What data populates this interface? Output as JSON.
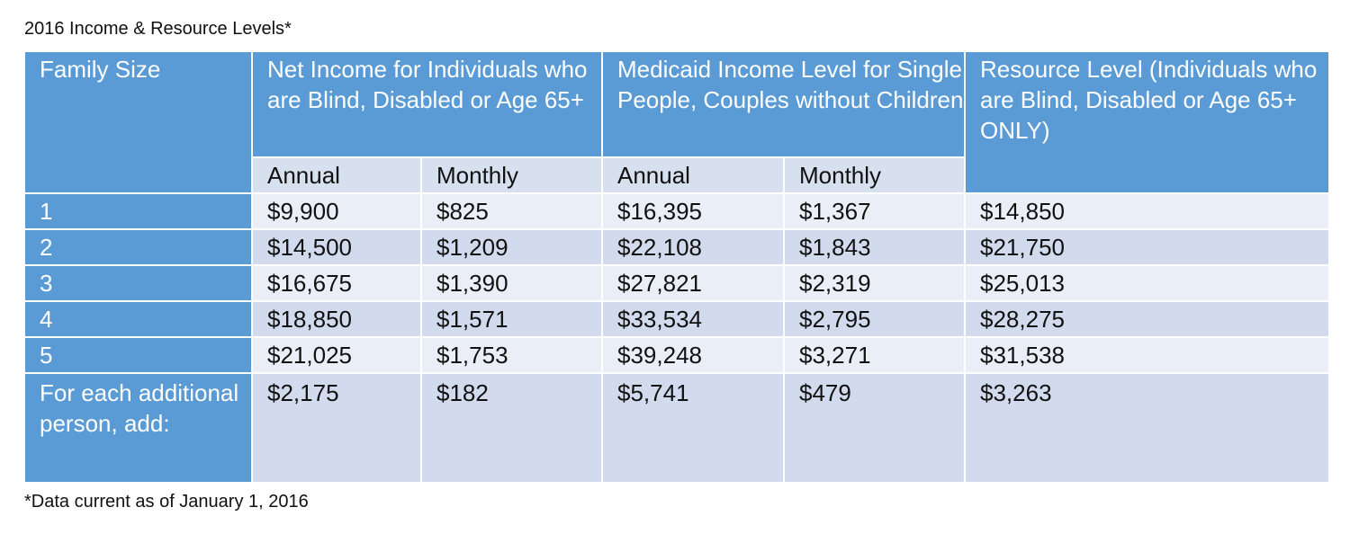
{
  "title": "2016 Income & Resource Levels*",
  "footnote": "*Data current as of January 1, 2016",
  "table": {
    "headers": {
      "family_size": "Family Size",
      "net_income": "Net Income for Individuals who are Blind, Disabled or Age 65+",
      "medicaid_income": "Medicaid Income Level for Single People, Couples without Children",
      "resource_level": "Resource Level (Individuals who are Blind, Disabled or Age 65+ ONLY)"
    },
    "subheaders": {
      "net_annual": "Annual",
      "net_monthly": "Monthly",
      "medicaid_annual": "Annual",
      "medicaid_monthly": "Monthly"
    },
    "rows": [
      {
        "size": "1",
        "net_annual": "$9,900",
        "net_monthly": "$825",
        "medicaid_annual": "$16,395",
        "medicaid_monthly": "$1,367",
        "resource": "$14,850"
      },
      {
        "size": "2",
        "net_annual": "$14,500",
        "net_monthly": "$1,209",
        "medicaid_annual": "$22,108",
        "medicaid_monthly": "$1,843",
        "resource": "$21,750"
      },
      {
        "size": "3",
        "net_annual": "$16,675",
        "net_monthly": "$1,390",
        "medicaid_annual": "$27,821",
        "medicaid_monthly": "$2,319",
        "resource": "$25,013"
      },
      {
        "size": "4",
        "net_annual": "$18,850",
        "net_monthly": "$1,571",
        "medicaid_annual": "$33,534",
        "medicaid_monthly": "$2,795",
        "resource": "$28,275"
      },
      {
        "size": "5",
        "net_annual": "$21,025",
        "net_monthly": "$1,753",
        "medicaid_annual": "$39,248",
        "medicaid_monthly": "$3,271",
        "resource": "$31,538"
      },
      {
        "size": "For each additional person, add:",
        "net_annual": "$2,175",
        "net_monthly": "$182",
        "medicaid_annual": "$5,741",
        "medicaid_monthly": "$479",
        "resource": "$3,263"
      }
    ]
  },
  "colors": {
    "header_blue": "#5b9bd5",
    "subheader_bg": "#d6e0ef",
    "row_light": "#e9eef7",
    "row_dark": "#d1dbed"
  }
}
